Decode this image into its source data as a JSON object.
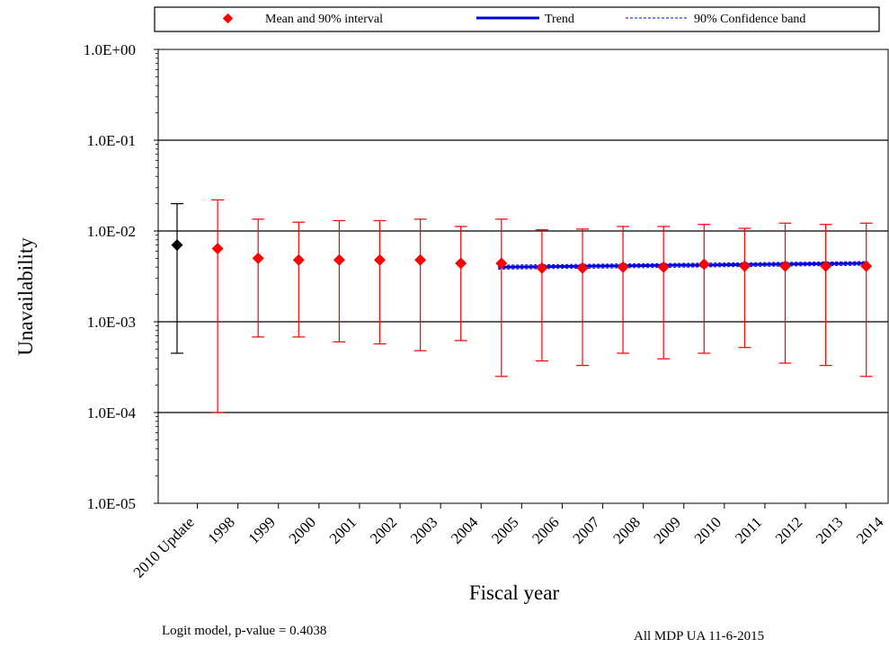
{
  "chart_data": {
    "type": "scatter",
    "xlabel": "Fiscal year",
    "ylabel": "Unavailability",
    "yscale": "log",
    "ylim": [
      1e-05,
      1
    ],
    "yticks": [
      "1.0E+00",
      "1.0E-01",
      "1.0E-02",
      "1.0E-03",
      "1.0E-04",
      "1.0E-05"
    ],
    "categories": [
      "2010 Update",
      "1998",
      "1999",
      "2000",
      "2001",
      "2002",
      "2003",
      "2004",
      "2005",
      "2006",
      "2007",
      "2008",
      "2009",
      "2010",
      "2011",
      "2012",
      "2013",
      "2014"
    ],
    "legend": {
      "position": "top",
      "entries": [
        "Mean and 90% interval",
        "Trend",
        "90% Confidence band"
      ]
    },
    "series": [
      {
        "name": "Mean and 90% interval",
        "color": "#ff0000",
        "highlight_color": "#000000",
        "mean": [
          0.007,
          0.0064,
          0.005,
          0.0048,
          0.0048,
          0.0048,
          0.0048,
          0.0044,
          0.0044,
          0.0039,
          0.0039,
          0.004,
          0.004,
          0.0043,
          0.0041,
          0.0041,
          0.0041,
          0.0041
        ],
        "lower": [
          0.00045,
          0.0001,
          0.00068,
          0.00068,
          0.0006,
          0.00057,
          0.00048,
          0.00062,
          0.00025,
          0.00037,
          0.00033,
          0.00045,
          0.00039,
          0.00045,
          0.00052,
          0.00035,
          0.00033,
          0.00025
        ],
        "upper": [
          0.02,
          0.022,
          0.0135,
          0.0125,
          0.013,
          0.013,
          0.0135,
          0.0112,
          0.0135,
          0.0103,
          0.0105,
          0.0112,
          0.0112,
          0.0118,
          0.0107,
          0.0122,
          0.0118,
          0.0122
        ]
      },
      {
        "name": "Trend",
        "color": "#0000dd",
        "x_range": [
          "2005",
          "2014"
        ],
        "values": [
          0.004,
          0.0044
        ]
      },
      {
        "name": "90% Confidence band",
        "color": "#0000dd",
        "x_range": [
          "2005",
          "2014"
        ],
        "upper": [
          0.0042,
          0.0046
        ],
        "lower": [
          0.0038,
          0.0042
        ]
      }
    ],
    "grid": true,
    "notes": {
      "model": "Logit model, p-value = 0.4038",
      "source": "All MDP UA 11-6-2015"
    }
  }
}
